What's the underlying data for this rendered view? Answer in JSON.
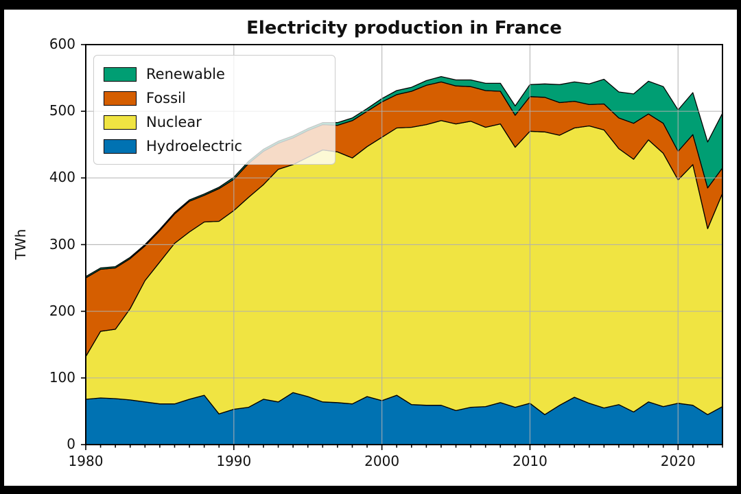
{
  "title": "Electricity production in France",
  "ylabel": "TWh",
  "legend": {
    "items": [
      {
        "label": "Renewable",
        "color": "#009e73"
      },
      {
        "label": "Fossil",
        "color": "#d55e00"
      },
      {
        "label": "Nuclear",
        "color": "#f0e442"
      },
      {
        "label": "Hydroelectric",
        "color": "#0072b2"
      }
    ]
  },
  "chart_data": {
    "type": "area",
    "stacked": true,
    "title": "Electricity production in France",
    "xlabel": "",
    "ylabel": "TWh",
    "xlim": [
      1980,
      2023
    ],
    "ylim": [
      0,
      600
    ],
    "xticks": [
      1980,
      1990,
      2000,
      2010,
      2020
    ],
    "yticks": [
      0,
      100,
      200,
      300,
      400,
      500,
      600
    ],
    "minor_xtick_every_years": 1,
    "grid": true,
    "grid_color": "#b0b0b0",
    "edge_color": "#000000",
    "spine_color": "#000000",
    "legend_position": "upper left",
    "x": [
      1980,
      1981,
      1982,
      1983,
      1984,
      1985,
      1986,
      1987,
      1988,
      1989,
      1990,
      1991,
      1992,
      1993,
      1994,
      1995,
      1996,
      1997,
      1998,
      1999,
      2000,
      2001,
      2002,
      2003,
      2004,
      2005,
      2006,
      2007,
      2008,
      2009,
      2010,
      2011,
      2012,
      2013,
      2014,
      2015,
      2016,
      2017,
      2018,
      2019,
      2020,
      2021,
      2022,
      2023
    ],
    "series": [
      {
        "name": "Hydroelectric",
        "color": "#0072b2",
        "values": [
          68,
          70,
          69,
          67,
          64,
          61,
          61,
          68,
          74,
          46,
          53,
          56,
          68,
          64,
          78,
          72,
          64,
          63,
          61,
          72,
          66,
          74,
          60,
          59,
          59,
          51,
          56,
          57,
          63,
          56,
          62,
          45,
          59,
          71,
          62,
          55,
          60,
          49,
          64,
          57,
          62,
          59,
          45,
          57
        ]
      },
      {
        "name": "Nuclear",
        "color": "#f0e442",
        "values": [
          64,
          100,
          104,
          137,
          182,
          213,
          241,
          251,
          260,
          289,
          298,
          315,
          322,
          349,
          342,
          359,
          378,
          376,
          369,
          375,
          395,
          401,
          416,
          421,
          427,
          430,
          429,
          419,
          418,
          390,
          408,
          424,
          405,
          404,
          416,
          417,
          384,
          379,
          393,
          380,
          335,
          361,
          279,
          320
        ]
      },
      {
        "name": "Fossil",
        "color": "#d55e00",
        "values": [
          118,
          93,
          92,
          75,
          52,
          47,
          44,
          46,
          40,
          49,
          47,
          51,
          50,
          39,
          40,
          40,
          38,
          40,
          56,
          53,
          53,
          50,
          54,
          59,
          58,
          57,
          52,
          55,
          49,
          48,
          52,
          52,
          49,
          40,
          32,
          39,
          46,
          54,
          39,
          45,
          43,
          45,
          61,
          38
        ]
      },
      {
        "name": "Renewable",
        "color": "#009e73",
        "values": [
          2,
          2,
          2,
          2,
          2,
          2,
          2,
          2,
          2,
          2,
          3,
          3,
          3,
          3,
          3,
          3,
          3,
          4,
          4,
          4,
          5,
          6,
          6,
          7,
          8,
          9,
          10,
          11,
          12,
          14,
          18,
          20,
          27,
          29,
          31,
          37,
          39,
          44,
          49,
          55,
          62,
          63,
          69,
          82
        ]
      }
    ]
  }
}
